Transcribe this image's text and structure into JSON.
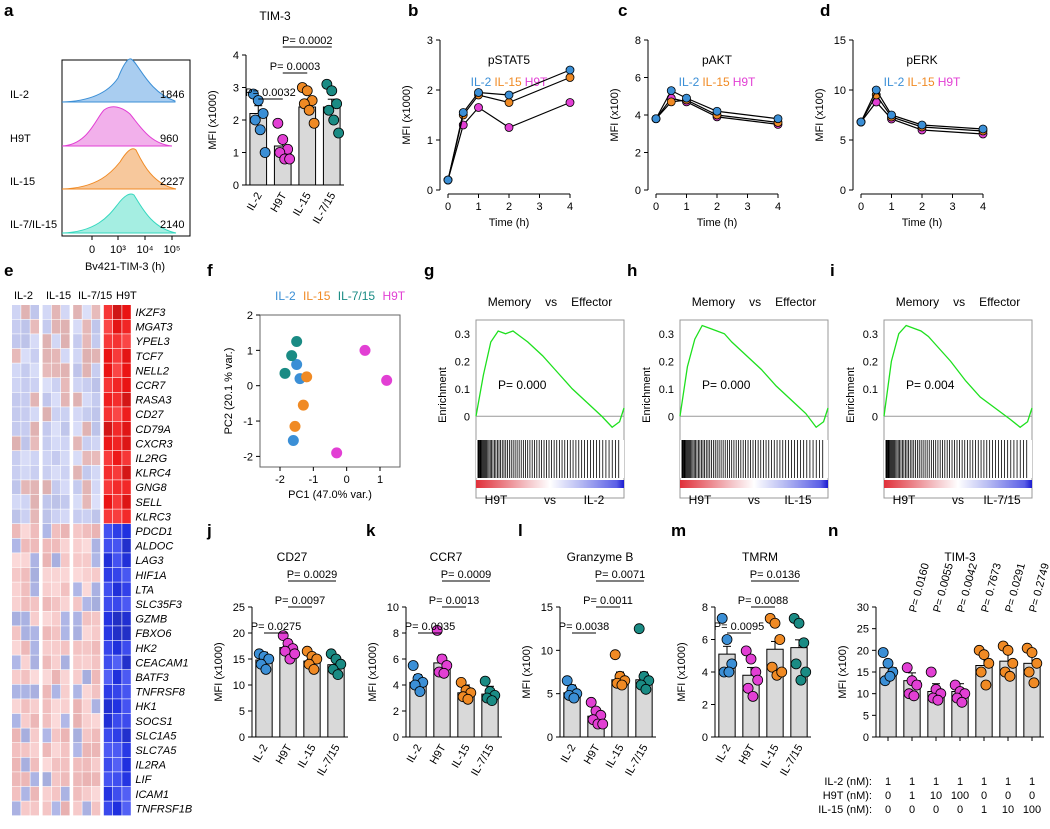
{
  "colors": {
    "il2": "#3b8fd6",
    "il15": "#f08a24",
    "il715": "#1a8b84",
    "h9t": "#e23fd4",
    "il715_flow": "#36d8bf",
    "bar": "#d9d9d9",
    "gsea": "#1ee01e"
  },
  "panel_labels": [
    "a",
    "b",
    "c",
    "d",
    "e",
    "f",
    "g",
    "h",
    "i",
    "j",
    "k",
    "l",
    "m",
    "n"
  ],
  "panel_a": {
    "title": "TIM-3",
    "xlabel": "Bv421-TIM-3 (h)",
    "flow_ticks": [
      "0",
      "10³",
      "10⁴",
      "10⁵"
    ],
    "rows": [
      {
        "label": "IL-2",
        "mfi": "1846"
      },
      {
        "label": "H9T",
        "mfi": "960"
      },
      {
        "label": "IL-15",
        "mfi": "2227"
      },
      {
        "label": "IL-7/IL-15",
        "mfi": "2140"
      }
    ]
  },
  "panel_d_legend": {
    "il2": "IL-2",
    "il15": "IL-15",
    "h9t": "H9T"
  },
  "panel_e": {
    "groups": [
      "IL-2",
      "IL-15",
      "IL-7/15",
      "H9T"
    ],
    "genes": [
      "IKZF3",
      "MGAT3",
      "YPEL3",
      "TCF7",
      "NELL2",
      "CCR7",
      "RASA3",
      "CD27",
      "CD79A",
      "CXCR3",
      "IL2RG",
      "KLRC4",
      "GNG8",
      "SELL",
      "KLRC3",
      "PDCD1",
      "ALDOC",
      "LAG3",
      "HIF1A",
      "LTA",
      "SLC35F3",
      "GZMB",
      "FBXO6",
      "HK2",
      "CEACAM1",
      "BATF3",
      "TNFRSF8",
      "HK1",
      "SOCS1",
      "SLC1A5",
      "SLC7A5",
      "IL2RA",
      "LIF",
      "ICAM1",
      "TNFRSF1B"
    ]
  },
  "panel_f": {
    "legend": [
      "IL-2",
      "IL-15",
      "IL-7/15",
      "H9T"
    ],
    "xlabel": "PC1 (47.0% var.)",
    "ylabel": "PC2 (20.1 % var.)"
  },
  "gsea_text": {
    "memory": "Memory",
    "vs": "vs",
    "effector": "Effector",
    "enrichment": "Enrichment",
    "h9t": "H9T"
  },
  "panel_n_table": {
    "rows": [
      {
        "label": "IL-2 (nM):",
        "values": [
          "1",
          "1",
          "1",
          "1",
          "1",
          "1",
          "1"
        ]
      },
      {
        "label": "H9T (nM):",
        "values": [
          "0",
          "1",
          "10",
          "100",
          "0",
          "0",
          "0"
        ]
      },
      {
        "label": "IL-15 (nM):",
        "values": [
          "0",
          "0",
          "0",
          "0",
          "1",
          "10",
          "100"
        ]
      }
    ]
  },
  "chart_data": [
    {
      "id": "a",
      "type": "bar",
      "title": "TIM-3",
      "ylabel": "MFI (x1000)",
      "ylim": [
        0,
        4
      ],
      "yticks": [
        "0",
        "1",
        "2",
        "3",
        "4"
      ],
      "categories": [
        "IL-2",
        "H9T",
        "IL-15",
        "IL-7/15"
      ],
      "values": [
        2.2,
        1.2,
        2.4,
        2.4
      ],
      "points": [
        [
          2.8,
          2.6,
          2.2,
          2.0,
          1.7,
          1.0
        ],
        [
          1.9,
          1.4,
          1.1,
          1.0,
          0.8,
          0.8
        ],
        [
          3.0,
          2.9,
          2.6,
          2.5,
          2.3,
          1.9
        ],
        [
          3.1,
          2.9,
          2.5,
          2.3,
          2.0,
          1.6
        ]
      ],
      "comparisons": [
        {
          "a": 0,
          "b": 1,
          "label": "P= 0.0032"
        },
        {
          "a": 1,
          "b": 2,
          "label": "P= 0.0003"
        },
        {
          "a": 1,
          "b": 3,
          "label": "P= 0.0002"
        }
      ]
    },
    {
      "id": "b",
      "type": "line",
      "title": "pSTAT5",
      "xlabel": "Time (h)",
      "ylabel": "MFI (x1000)",
      "xlim": [
        0,
        4
      ],
      "ylim": [
        0,
        3
      ],
      "xticks": [
        "0",
        "1",
        "2",
        "3",
        "4"
      ],
      "yticks": [
        "0",
        "1",
        "2",
        "3"
      ],
      "legend": [
        "IL-2",
        "IL-15",
        "H9T"
      ],
      "series": [
        {
          "name": "IL-2",
          "x": [
            0,
            0.5,
            1,
            2,
            4
          ],
          "y": [
            0.2,
            1.55,
            1.95,
            1.9,
            2.4
          ]
        },
        {
          "name": "IL-15",
          "x": [
            0,
            0.5,
            1,
            2,
            4
          ],
          "y": [
            0.2,
            1.5,
            1.9,
            1.75,
            2.25
          ]
        },
        {
          "name": "H9T",
          "x": [
            0,
            0.5,
            1,
            2,
            4
          ],
          "y": [
            0.2,
            1.3,
            1.65,
            1.25,
            1.75
          ]
        }
      ]
    },
    {
      "id": "c",
      "type": "line",
      "title": "pAKT",
      "xlabel": "Time (h)",
      "ylabel": "MFI (x100)",
      "xlim": [
        0,
        4
      ],
      "ylim": [
        0,
        8
      ],
      "xticks": [
        "0",
        "1",
        "2",
        "3",
        "4"
      ],
      "yticks": [
        "0",
        "2",
        "4",
        "6",
        "8"
      ],
      "legend": [
        "IL-2",
        "IL-15",
        "H9T"
      ],
      "series": [
        {
          "name": "IL-2",
          "x": [
            0,
            0.5,
            1,
            2,
            4
          ],
          "y": [
            3.8,
            5.3,
            4.9,
            4.2,
            3.8
          ]
        },
        {
          "name": "IL-15",
          "x": [
            0,
            0.5,
            1,
            2,
            4
          ],
          "y": [
            3.8,
            4.7,
            4.8,
            4.0,
            3.6
          ]
        },
        {
          "name": "H9T",
          "x": [
            0,
            0.5,
            1,
            2,
            4
          ],
          "y": [
            3.8,
            4.9,
            4.7,
            3.9,
            3.5
          ]
        }
      ]
    },
    {
      "id": "d",
      "type": "line",
      "title": "pERK",
      "xlabel": "Time (h)",
      "ylabel": "MFI (x100)",
      "xlim": [
        0,
        4
      ],
      "ylim": [
        0,
        15
      ],
      "xticks": [
        "0",
        "1",
        "2",
        "3",
        "4"
      ],
      "yticks": [
        "0",
        "5",
        "10",
        "15"
      ],
      "legend": [
        "IL-2",
        "IL-15",
        "H9T"
      ],
      "series": [
        {
          "name": "IL-2",
          "x": [
            0,
            0.5,
            1,
            2,
            4
          ],
          "y": [
            6.8,
            10.0,
            7.5,
            6.5,
            6.1
          ]
        },
        {
          "name": "IL-15",
          "x": [
            0,
            0.5,
            1,
            2,
            4
          ],
          "y": [
            6.8,
            9.5,
            7.3,
            6.3,
            5.9
          ]
        },
        {
          "name": "H9T",
          "x": [
            0,
            0.5,
            1,
            2,
            4
          ],
          "y": [
            6.8,
            8.8,
            7.1,
            6.0,
            5.6
          ]
        }
      ]
    },
    {
      "id": "f",
      "type": "scatter",
      "xlabel": "PC1 (47.0% var.)",
      "ylabel": "PC2 (20.1 % var.)",
      "xlim": [
        -2.6,
        1.6
      ],
      "ylim": [
        -2.3,
        2.0
      ],
      "xticks": [
        "-2",
        "-1",
        "0",
        "1"
      ],
      "yticks": [
        "-2",
        "-1",
        "0",
        "1",
        "2"
      ],
      "series": [
        {
          "name": "IL-2",
          "x": [
            -1.5,
            -1.4,
            -1.6
          ],
          "y": [
            0.6,
            0.2,
            -1.55
          ]
        },
        {
          "name": "IL-15",
          "x": [
            -1.2,
            -1.3,
            -1.55
          ],
          "y": [
            0.25,
            -0.55,
            -1.15
          ]
        },
        {
          "name": "IL-7/15",
          "x": [
            -1.5,
            -1.65,
            -1.85
          ],
          "y": [
            1.25,
            0.85,
            0.35
          ]
        },
        {
          "name": "H9T",
          "x": [
            0.55,
            1.2,
            -0.3
          ],
          "y": [
            1.0,
            0.15,
            -1.9
          ]
        }
      ]
    },
    {
      "id": "g",
      "type": "line",
      "title": "Memory vs Effector",
      "ylabel": "Enrichment",
      "ylim": [
        -0.05,
        0.35
      ],
      "yticks": [
        "0",
        "0.1",
        "0.2",
        "0.3"
      ],
      "annotation": "P= 0.000",
      "xgroups": [
        "H9T",
        "vs",
        "IL-2"
      ],
      "series": [
        {
          "name": "ES",
          "x": [
            0,
            0.05,
            0.1,
            0.15,
            0.2,
            0.25,
            0.3,
            0.35,
            0.45,
            0.55,
            0.65,
            0.75,
            0.85,
            0.92,
            0.97,
            1.0
          ],
          "y": [
            0,
            0.15,
            0.27,
            0.31,
            0.3,
            0.31,
            0.29,
            0.27,
            0.22,
            0.16,
            0.1,
            0.05,
            0.0,
            -0.04,
            -0.02,
            0.03
          ]
        }
      ]
    },
    {
      "id": "h",
      "type": "line",
      "title": "Memory vs Effector",
      "ylabel": "Enrichment",
      "ylim": [
        -0.05,
        0.35
      ],
      "yticks": [
        "0",
        "0.1",
        "0.2",
        "0.3"
      ],
      "annotation": "P= 0.000",
      "xgroups": [
        "H9T",
        "vs",
        "IL-15"
      ],
      "series": [
        {
          "name": "ES",
          "x": [
            0,
            0.05,
            0.1,
            0.15,
            0.2,
            0.25,
            0.3,
            0.35,
            0.45,
            0.55,
            0.65,
            0.75,
            0.85,
            0.92,
            0.97,
            1.0
          ],
          "y": [
            0,
            0.18,
            0.28,
            0.33,
            0.32,
            0.31,
            0.3,
            0.27,
            0.22,
            0.17,
            0.11,
            0.06,
            0.01,
            -0.04,
            -0.02,
            0.03
          ]
        }
      ]
    },
    {
      "id": "i",
      "type": "line",
      "title": "Memory vs Effector",
      "ylabel": "Enrichment",
      "ylim": [
        -0.05,
        0.35
      ],
      "yticks": [
        "0",
        "0.1",
        "0.2",
        "0.3"
      ],
      "annotation": "P= 0.004",
      "xgroups": [
        "H9T",
        "vs",
        "IL-7/15"
      ],
      "series": [
        {
          "name": "ES",
          "x": [
            0,
            0.05,
            0.1,
            0.15,
            0.2,
            0.25,
            0.3,
            0.35,
            0.45,
            0.55,
            0.65,
            0.75,
            0.85,
            0.92,
            0.97,
            1.0
          ],
          "y": [
            0,
            0.2,
            0.3,
            0.33,
            0.32,
            0.31,
            0.29,
            0.26,
            0.2,
            0.13,
            0.07,
            0.03,
            -0.01,
            -0.04,
            -0.02,
            0.03
          ]
        }
      ]
    },
    {
      "id": "j",
      "type": "bar",
      "title": "CD27",
      "ylabel": "MFI (x1000)",
      "ylim": [
        0,
        25
      ],
      "yticks": [
        "0",
        "5",
        "10",
        "15",
        "20",
        "25"
      ],
      "categories": [
        "IL-2",
        "H9T",
        "IL-15",
        "IL-7/15"
      ],
      "values": [
        14.8,
        17.2,
        14.6,
        13.9
      ],
      "points": [
        [
          16,
          15.5,
          15,
          14,
          13
        ],
        [
          19.5,
          18,
          17,
          16.5,
          15,
          16
        ],
        [
          16.5,
          15.5,
          15,
          14,
          13
        ],
        [
          16,
          15,
          14,
          13,
          12
        ]
      ],
      "comparisons": [
        {
          "a": 0,
          "b": 1,
          "label": "P= 0.0275"
        },
        {
          "a": 1,
          "b": 2,
          "label": "P= 0.0097"
        },
        {
          "a": 1,
          "b": 3,
          "label": "P= 0.0029"
        }
      ]
    },
    {
      "id": "k",
      "type": "bar",
      "title": "CCR7",
      "ylabel": "MFI (x1000)",
      "ylim": [
        0,
        10
      ],
      "yticks": [
        "0",
        "2",
        "4",
        "6",
        "8",
        "10"
      ],
      "categories": [
        "IL-2",
        "H9T",
        "IL-15",
        "IL-7/15"
      ],
      "values": [
        4.2,
        5.7,
        3.4,
        3.3
      ],
      "points": [
        [
          5.5,
          4.5,
          4.2,
          4,
          3.5
        ],
        [
          8.2,
          6,
          5.5,
          5,
          4.9
        ],
        [
          4.2,
          3.6,
          3.4,
          3.1,
          2.9
        ],
        [
          4.3,
          3.5,
          3.2,
          3,
          2.8
        ]
      ],
      "comparisons": [
        {
          "a": 0,
          "b": 1,
          "label": "P= 0.0035"
        },
        {
          "a": 1,
          "b": 2,
          "label": "P= 0.0013"
        },
        {
          "a": 1,
          "b": 3,
          "label": "P= 0.0009"
        }
      ]
    },
    {
      "id": "l",
      "type": "bar",
      "title": "Granzyme B",
      "ylabel": "MFI (x100)",
      "ylim": [
        0,
        15
      ],
      "yticks": [
        "0",
        "5",
        "10",
        "15"
      ],
      "categories": [
        "IL-2",
        "H9T",
        "IL-15",
        "IL-7/15"
      ],
      "values": [
        5.1,
        2.4,
        6.6,
        6.6
      ],
      "points": [
        [
          6.5,
          5.5,
          5,
          4.8,
          4.5
        ],
        [
          4,
          3,
          2.5,
          2,
          1.5,
          1.5
        ],
        [
          9.5,
          7,
          6.5,
          6.2,
          6
        ],
        [
          12.5,
          7,
          6.5,
          6,
          5.5
        ]
      ],
      "comparisons": [
        {
          "a": 0,
          "b": 1,
          "label": "P= 0.0038"
        },
        {
          "a": 1,
          "b": 2,
          "label": "P= 0.0011"
        },
        {
          "a": 1,
          "b": 3,
          "label": "P= 0.0071"
        }
      ]
    },
    {
      "id": "m",
      "type": "bar",
      "title": "TMRM",
      "ylabel": "MFI (x1000)",
      "ylim": [
        0,
        8
      ],
      "yticks": [
        "0",
        "2",
        "4",
        "6",
        "8"
      ],
      "categories": [
        "IL-2",
        "H9T",
        "IL-15",
        "IL-7/15"
      ],
      "values": [
        5.1,
        3.8,
        5.4,
        5.5
      ],
      "points": [
        [
          7.3,
          6,
          4.5,
          4,
          4
        ],
        [
          5.3,
          4.8,
          4,
          3,
          2.5,
          3.5
        ],
        [
          7.3,
          7,
          6,
          4.3,
          3.8,
          4
        ],
        [
          7.3,
          7,
          5.8,
          4.5,
          3.5,
          4
        ]
      ],
      "comparisons": [
        {
          "a": 0,
          "b": 1,
          "label": "P= 0.0095"
        },
        {
          "a": 1,
          "b": 2,
          "label": "P= 0.0088"
        },
        {
          "a": 1,
          "b": 3,
          "label": "P= 0.0136"
        }
      ]
    },
    {
      "id": "n",
      "type": "bar",
      "title": "TIM-3",
      "ylabel": "MFI (x100)",
      "ylim": [
        0,
        30
      ],
      "yticks": [
        "0",
        "5",
        "10",
        "15",
        "20",
        "25",
        "30"
      ],
      "categories": [
        "1/0/0",
        "1/1/0",
        "1/10/0",
        "1/100/0",
        "1/0/1",
        "1/0/10",
        "1/0/100"
      ],
      "values": [
        16,
        13,
        10.5,
        10.5,
        16.5,
        17.5,
        17
      ],
      "points": [
        [
          19.5,
          17,
          15,
          13,
          14
        ],
        [
          16,
          13,
          12,
          10,
          9.5
        ],
        [
          15,
          11,
          10,
          9,
          8.5
        ],
        [
          12,
          10.5,
          10,
          9,
          8
        ],
        [
          20,
          19,
          17,
          15,
          12
        ],
        [
          21,
          20,
          17,
          15,
          14
        ],
        [
          20.5,
          19.5,
          17,
          15,
          12.5
        ]
      ],
      "pvalues": [
        "P= 0.0160",
        "P= 0.0055",
        "P= 0.0042",
        "P= 0.7673",
        "P= 0.0291",
        "P= 0.2749"
      ]
    }
  ]
}
